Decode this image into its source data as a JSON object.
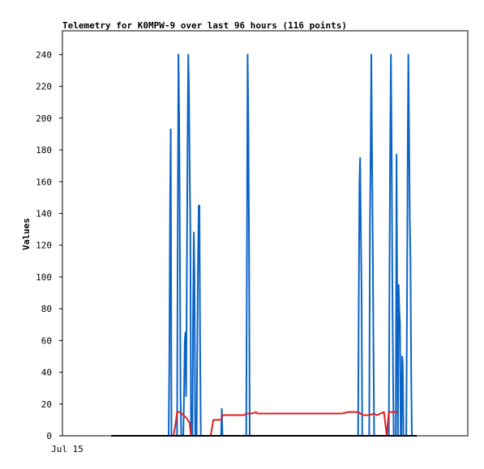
{
  "chart_data": {
    "type": "line",
    "title": "Telemetry for K0MPW-9 over last 96 hours (116 points)",
    "ylabel": "Values",
    "xlabel": "",
    "x_tick_labels": [
      "Jul 15"
    ],
    "y_ticks": [
      0,
      20,
      40,
      60,
      80,
      100,
      120,
      140,
      160,
      180,
      200,
      220,
      240
    ],
    "ylim": [
      0,
      255
    ],
    "x_range": [
      0,
      116
    ],
    "grid": false,
    "colors": {
      "series_blue": "#0a64c8",
      "series_red": "#e02020",
      "series_black": "#000000"
    },
    "series": [
      {
        "color": "#0a64c8",
        "points": [
          [
            30.4,
            0
          ],
          [
            30.6,
            48
          ],
          [
            30.8,
            145
          ],
          [
            31.0,
            193
          ],
          [
            31.2,
            0
          ],
          [
            32.8,
            0
          ],
          [
            33.0,
            125
          ],
          [
            33.2,
            240
          ],
          [
            33.4,
            200
          ],
          [
            33.6,
            130
          ],
          [
            33.8,
            25
          ],
          [
            34.0,
            0
          ],
          [
            34.6,
            0
          ],
          [
            34.8,
            25
          ],
          [
            35.0,
            60
          ],
          [
            35.2,
            65
          ],
          [
            35.4,
            25
          ],
          [
            35.8,
            180
          ],
          [
            36.0,
            240
          ],
          [
            36.2,
            220
          ],
          [
            36.4,
            170
          ],
          [
            36.6,
            130
          ],
          [
            36.8,
            0
          ],
          [
            37.2,
            0
          ],
          [
            37.4,
            80
          ],
          [
            37.6,
            128
          ],
          [
            37.8,
            100
          ],
          [
            38.0,
            0
          ],
          [
            38.4,
            0
          ],
          [
            38.6,
            60
          ],
          [
            38.8,
            105
          ],
          [
            39.0,
            145
          ],
          [
            39.2,
            145
          ],
          [
            39.4,
            60
          ],
          [
            39.6,
            0
          ],
          [
            45.4,
            0
          ],
          [
            45.6,
            17
          ],
          [
            45.8,
            0
          ],
          [
            52.6,
            0
          ],
          [
            52.8,
            120
          ],
          [
            53.0,
            240
          ],
          [
            53.2,
            200
          ],
          [
            53.4,
            120
          ],
          [
            53.6,
            0
          ],
          [
            84.6,
            0
          ],
          [
            84.8,
            85
          ],
          [
            85.0,
            160
          ],
          [
            85.2,
            175
          ],
          [
            85.4,
            130
          ],
          [
            85.6,
            90
          ],
          [
            85.8,
            0
          ],
          [
            87.8,
            0
          ],
          [
            88.0,
            130
          ],
          [
            88.2,
            180
          ],
          [
            88.4,
            240
          ],
          [
            88.6,
            180
          ],
          [
            88.8,
            120
          ],
          [
            89.0,
            60
          ],
          [
            89.2,
            0
          ],
          [
            93.4,
            0
          ],
          [
            93.6,
            100
          ],
          [
            93.8,
            183
          ],
          [
            94.0,
            240
          ],
          [
            94.2,
            190
          ],
          [
            94.4,
            100
          ],
          [
            94.6,
            40
          ],
          [
            94.8,
            0
          ],
          [
            95.4,
            0
          ],
          [
            95.6,
            177
          ],
          [
            95.8,
            90
          ],
          [
            96.0,
            0
          ],
          [
            96.2,
            95
          ],
          [
            96.4,
            80
          ],
          [
            96.6,
            70
          ],
          [
            96.8,
            0
          ],
          [
            97.0,
            0
          ],
          [
            97.2,
            50
          ],
          [
            97.4,
            45
          ],
          [
            97.6,
            0
          ],
          [
            98.4,
            0
          ],
          [
            98.6,
            80
          ],
          [
            98.8,
            180
          ],
          [
            99.0,
            240
          ],
          [
            99.2,
            190
          ],
          [
            99.4,
            140
          ],
          [
            99.6,
            110
          ],
          [
            99.8,
            40
          ],
          [
            100.0,
            0
          ]
        ]
      },
      {
        "color": "#e02020",
        "points": [
          [
            31.8,
            0
          ],
          [
            32.4,
            8
          ],
          [
            32.8,
            15
          ],
          [
            33.6,
            15
          ],
          [
            34.6,
            13
          ],
          [
            35.6,
            11
          ],
          [
            36.4,
            8
          ],
          [
            36.8,
            0
          ],
          [
            42.4,
            0
          ],
          [
            43.2,
            10
          ],
          [
            45.4,
            10
          ],
          [
            45.8,
            13
          ],
          [
            47.0,
            13
          ],
          [
            52.0,
            13
          ],
          [
            52.6,
            14
          ],
          [
            54.0,
            14
          ],
          [
            55.0,
            14.5
          ],
          [
            55.4,
            15
          ],
          [
            55.8,
            14
          ],
          [
            66.0,
            14
          ],
          [
            76.0,
            14
          ],
          [
            80.0,
            14
          ],
          [
            82.0,
            15
          ],
          [
            84.6,
            15
          ],
          [
            86.0,
            13
          ],
          [
            88.0,
            13
          ],
          [
            89.0,
            14
          ],
          [
            90.0,
            13
          ],
          [
            92.0,
            15
          ],
          [
            92.8,
            0
          ],
          [
            93.4,
            15
          ],
          [
            96.0,
            15
          ]
        ]
      },
      {
        "color": "#000000",
        "points": [
          [
            14.0,
            0
          ],
          [
            101.4,
            0
          ]
        ]
      }
    ]
  }
}
